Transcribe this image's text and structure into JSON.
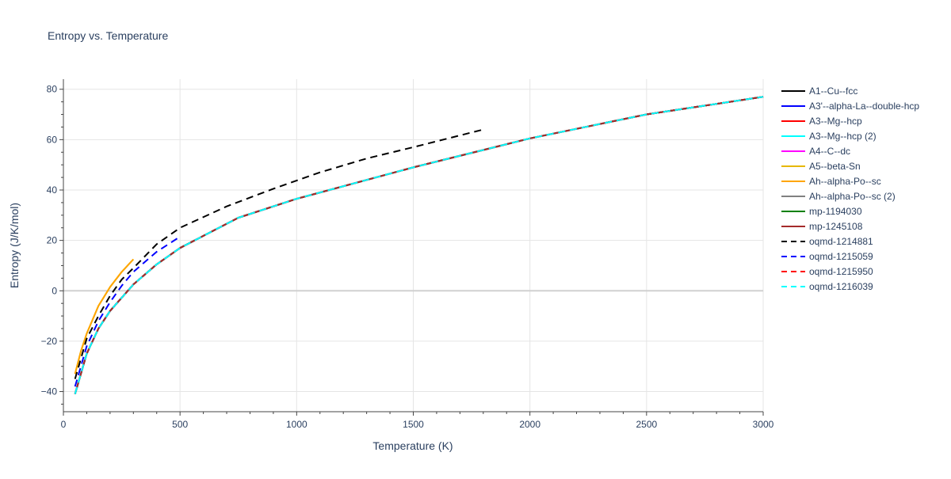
{
  "chart_data": {
    "type": "line",
    "title": "Entropy vs. Temperature",
    "xlabel": "Temperature (K)",
    "ylabel": "Entropy (J/K/mol)",
    "xlim": [
      0,
      3000
    ],
    "ylim": [
      -48,
      84
    ],
    "xticks": [
      0,
      500,
      1000,
      1500,
      2000,
      2500,
      3000
    ],
    "yticks": [
      -40,
      -20,
      0,
      20,
      40,
      60,
      80
    ],
    "grid": true,
    "legend_position": "right",
    "series": [
      {
        "name": "A1--Cu--fcc",
        "color": "#000000",
        "dash": "solid",
        "x": [
          50,
          100,
          150,
          200,
          300,
          400,
          500,
          750,
          1000,
          1500,
          2000,
          2500,
          3000
        ],
        "y": [
          -41,
          -25,
          -15,
          -8,
          2.5,
          10.5,
          17,
          29,
          36.5,
          49,
          60.5,
          70,
          77
        ]
      },
      {
        "name": "A3'--alpha-La--double-hcp",
        "color": "#0000ff",
        "dash": "solid",
        "x": [
          50,
          100,
          150,
          200,
          300,
          400,
          500,
          750,
          1000,
          1500,
          2000,
          2500,
          3000
        ],
        "y": [
          -41,
          -25,
          -15,
          -8,
          2.5,
          10.5,
          17,
          29,
          36.5,
          49,
          60.5,
          70,
          77
        ]
      },
      {
        "name": "A3--Mg--hcp",
        "color": "#ff0000",
        "dash": "solid",
        "x": [
          50,
          100,
          150,
          200,
          300,
          400,
          500,
          750,
          1000,
          1500,
          2000,
          2500,
          3000
        ],
        "y": [
          -41,
          -25,
          -15,
          -8,
          2.5,
          10.5,
          17,
          29,
          36.5,
          49,
          60.5,
          70,
          77
        ]
      },
      {
        "name": "A3--Mg--hcp (2)",
        "color": "#00ffff",
        "dash": "solid",
        "x": [
          50,
          100,
          150,
          200,
          300,
          400,
          500,
          750,
          1000,
          1500,
          2000,
          2500,
          3000
        ],
        "y": [
          -41,
          -25,
          -15,
          -8,
          2.5,
          10.5,
          17,
          29,
          36.5,
          49,
          60.5,
          70,
          77
        ]
      },
      {
        "name": "A4--C--dc",
        "color": "#ff00ff",
        "dash": "solid",
        "x": [
          50,
          100,
          150,
          200,
          300,
          400,
          500,
          750,
          1000,
          1500,
          2000,
          2500,
          3000
        ],
        "y": [
          -41,
          -25,
          -15,
          -8,
          2.5,
          10.5,
          17,
          29,
          36.5,
          49,
          60.5,
          70,
          77
        ]
      },
      {
        "name": "A5--beta-Sn",
        "color": "#e6b800",
        "dash": "solid",
        "x": [
          50,
          75,
          100,
          150,
          200,
          250,
          300
        ],
        "y": [
          -33,
          -24,
          -17,
          -6,
          1.5,
          7.5,
          12.5
        ]
      },
      {
        "name": "Ah--alpha-Po--sc",
        "color": "#ffa500",
        "dash": "solid",
        "x": [
          50,
          75,
          100,
          150,
          200,
          250,
          300
        ],
        "y": [
          -33,
          -24,
          -17,
          -6,
          1.5,
          7.5,
          12.5
        ]
      },
      {
        "name": "Ah--alpha-Po--sc (2)",
        "color": "#808080",
        "dash": "solid",
        "x": [
          50,
          100,
          150,
          200,
          300,
          400,
          500,
          750,
          1000,
          1500,
          2000,
          2500,
          3000
        ],
        "y": [
          -41,
          -25,
          -15,
          -8,
          2.5,
          10.5,
          17,
          29,
          36.5,
          49,
          60.5,
          70,
          77
        ]
      },
      {
        "name": "mp-1194030",
        "color": "#008000",
        "dash": "solid",
        "x": [
          50,
          100,
          150,
          200,
          300,
          400,
          500,
          750,
          1000,
          1500,
          2000,
          2500,
          3000
        ],
        "y": [
          -41,
          -25,
          -15,
          -8,
          2.5,
          10.5,
          17,
          29,
          36.5,
          49,
          60.5,
          70,
          77
        ]
      },
      {
        "name": "mp-1245108",
        "color": "#a52a2a",
        "dash": "solid",
        "x": [
          50,
          100,
          150,
          200,
          300,
          400,
          500,
          750,
          1000,
          1500,
          2000,
          2500,
          3000
        ],
        "y": [
          -41,
          -25,
          -15,
          -8,
          2.5,
          10.5,
          17,
          29,
          36.5,
          49,
          60.5,
          70,
          77
        ]
      },
      {
        "name": "oqmd-1214881",
        "color": "#000000",
        "dash": "dash",
        "x": [
          50,
          100,
          150,
          200,
          250,
          300,
          400,
          500,
          700,
          900,
          1100,
          1300,
          1500,
          1800
        ],
        "y": [
          -35,
          -19,
          -10,
          -2,
          4.5,
          9,
          18.5,
          25,
          33.5,
          40.5,
          47,
          52.5,
          57,
          64
        ]
      },
      {
        "name": "oqmd-1215059",
        "color": "#0000ff",
        "dash": "dash",
        "x": [
          50,
          100,
          150,
          200,
          250,
          300,
          400,
          500
        ],
        "y": [
          -38,
          -22,
          -12,
          -4.5,
          2,
          7.5,
          15.5,
          21.5
        ]
      },
      {
        "name": "oqmd-1215950",
        "color": "#ff0000",
        "dash": "dash",
        "x": [
          50,
          100,
          150,
          200,
          300,
          400,
          500,
          750,
          1000,
          1500,
          2000,
          2500,
          3000
        ],
        "y": [
          -41,
          -25,
          -15,
          -8,
          2.5,
          10.5,
          17,
          29,
          36.5,
          49,
          60.5,
          70,
          77
        ]
      },
      {
        "name": "oqmd-1216039",
        "color": "#00ffff",
        "dash": "dash",
        "x": [
          50,
          100,
          150,
          200,
          300,
          400,
          500,
          750,
          1000,
          1500,
          2000,
          2500,
          3000
        ],
        "y": [
          -41,
          -25,
          -15,
          -8,
          2.5,
          10.5,
          17,
          29,
          36.5,
          49,
          60.5,
          70,
          77
        ]
      }
    ]
  }
}
